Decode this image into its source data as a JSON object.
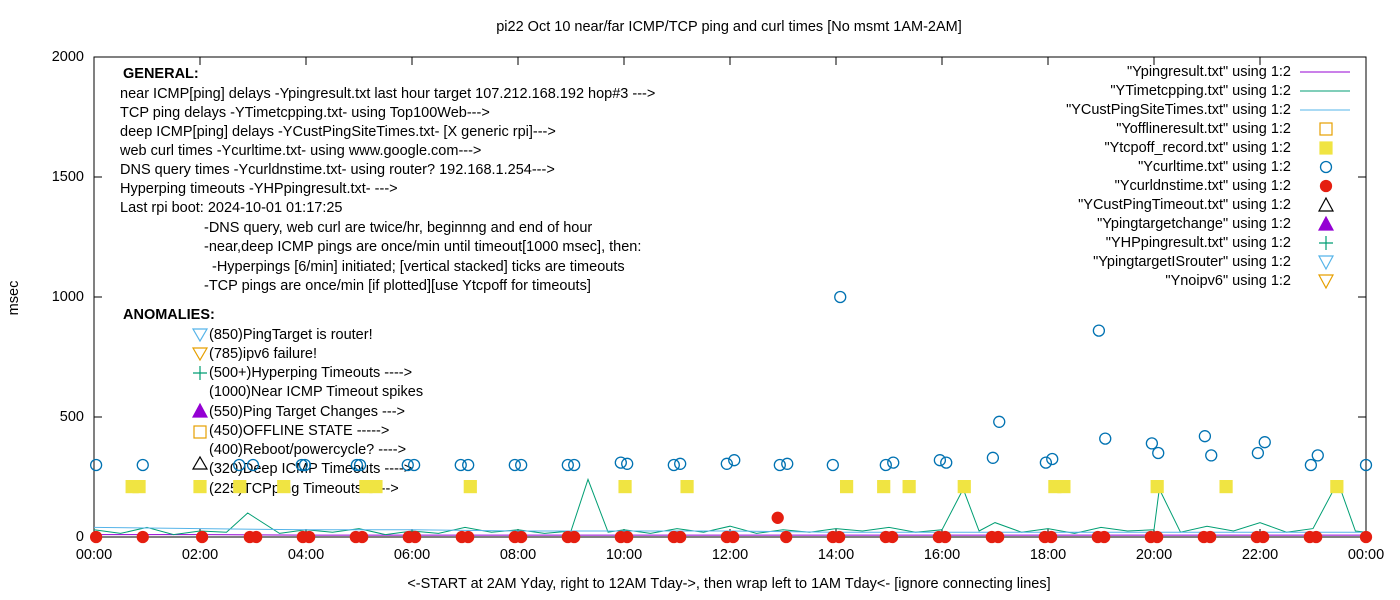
{
  "chart_data": {
    "type": "scatter",
    "title": "pi22 Oct 10  near/far ICMP/TCP ping and curl times [No msmt 1AM-2AM]",
    "y_label": "msec",
    "x_label": "<-START at 2AM Yday, right to 12AM Tday->, then wrap left to 1AM Tday<- [ignore connecting lines]",
    "xlim": [
      0,
      24
    ],
    "xticks": [
      {
        "value": 0,
        "label": "00:00"
      },
      {
        "value": 2,
        "label": "02:00"
      },
      {
        "value": 4,
        "label": "04:00"
      },
      {
        "value": 6,
        "label": "06:00"
      },
      {
        "value": 8,
        "label": "08:00"
      },
      {
        "value": 10,
        "label": "10:00"
      },
      {
        "value": 12,
        "label": "12:00"
      },
      {
        "value": 14,
        "label": "14:00"
      },
      {
        "value": 16,
        "label": "16:00"
      },
      {
        "value": 18,
        "label": "18:00"
      },
      {
        "value": 20,
        "label": "20:00"
      },
      {
        "value": 22,
        "label": "22:00"
      },
      {
        "value": 24,
        "label": "00:00"
      }
    ],
    "ylim": [
      0,
      2000
    ],
    "yticks": [
      0,
      500,
      1000,
      1500,
      2000
    ],
    "annotations": [
      "GENERAL:",
      "near ICMP[ping] delays -Ypingresult.txt last hour target 107.212.168.192 hop#3 --->",
      "TCP ping delays -YTimetcpping.txt- using Top100Web--->",
      "deep ICMP[ping] delays -YCustPingSiteTimes.txt- [X generic rpi]--->",
      "web curl times -Ycurltime.txt- using www.google.com--->",
      "DNS query times -Ycurldnstime.txt- using router? 192.168.1.254--->",
      "Hyperping timeouts -YHPpingresult.txt- --->",
      "Last rpi boot: 2024-10-01 01:17:25",
      "-DNS query, web curl are twice/hr, beginnng and end of hour",
      "-near,deep ICMP pings are once/min until timeout[1000 msec], then:",
      "-Hyperpings [6/min] initiated; [vertical stacked] ticks are timeouts",
      "-TCP pings are once/min [if plotted][use Ytcpoff for timeouts]",
      "ANOMALIES:",
      "(850)PingTarget is router!",
      "(785)ipv6 failure!",
      "(500+)Hyperping Timeouts ---->",
      "(1000)Near ICMP Timeout spikes",
      "(550)Ping Target Changes --->",
      "(450)OFFLINE STATE ----->",
      "(400)Reboot/powercycle? ---->",
      "(320)Deep ICMP Timeouts ---->",
      "(225)TCPping Timeouts ----->"
    ],
    "series": [
      {
        "name": "\"Ypingresult.txt\" using 1:2",
        "color": "#9400d3",
        "marker": "line",
        "x": [
          0,
          2,
          4,
          6,
          8,
          10,
          12,
          14,
          16,
          18,
          20,
          22,
          24
        ],
        "values": [
          10,
          10,
          8,
          8,
          8,
          8,
          8,
          8,
          8,
          8,
          8,
          8,
          8
        ]
      },
      {
        "name": "\"YTimetcpping.txt\" using 1:2",
        "color": "#009e73",
        "marker": "line",
        "x": [
          0,
          0.5,
          1,
          1.5,
          2,
          2.5,
          2.9,
          3.5,
          4,
          4.5,
          5,
          5.5,
          6,
          6.5,
          7,
          7.5,
          8,
          8.5,
          9,
          9.32,
          9.7,
          10,
          10.5,
          11,
          11.5,
          12,
          12.5,
          13,
          13.5,
          14,
          14.5,
          15,
          15.5,
          16,
          16.4,
          16.7,
          17,
          17.5,
          18,
          18.5,
          19,
          19.5,
          20,
          20.1,
          20.5,
          21,
          21.5,
          22,
          22.5,
          23,
          23.47,
          23.8,
          24
        ],
        "values": [
          30,
          15,
          40,
          10,
          25,
          20,
          100,
          15,
          30,
          20,
          35,
          10,
          25,
          15,
          40,
          20,
          30,
          15,
          25,
          240,
          20,
          30,
          15,
          35,
          20,
          45,
          15,
          30,
          20,
          35,
          25,
          40,
          20,
          30,
          200,
          25,
          60,
          20,
          35,
          15,
          40,
          25,
          30,
          200,
          20,
          45,
          25,
          60,
          20,
          35,
          230,
          25,
          20
        ]
      },
      {
        "name": "\"YCustPingSiteTimes.txt\" using 1:2",
        "color": "#56b4e9",
        "marker": "line",
        "x": [
          0,
          2,
          4,
          6,
          8,
          10,
          12,
          14,
          16,
          18,
          20,
          22,
          24
        ],
        "values": [
          40,
          35,
          30,
          30,
          25,
          25,
          25,
          20,
          20,
          20,
          20,
          20,
          20
        ]
      },
      {
        "name": "\"Yofflineresult.txt\" using 1:2",
        "color": "#e69f00",
        "marker": "open-square",
        "x": [],
        "values": []
      },
      {
        "name": "\"Ytcpoff_record.txt\" using 1:2",
        "color": "#f0e442",
        "marker": "filled-square",
        "x": [
          0.72,
          0.85,
          2.0,
          2.75,
          3.58,
          5.13,
          5.32,
          7.1,
          10.02,
          11.19,
          14.2,
          14.9,
          15.38,
          16.42,
          18.13,
          18.3,
          20.06,
          21.36,
          23.45
        ],
        "values": [
          210,
          210,
          210,
          210,
          210,
          210,
          210,
          210,
          210,
          210,
          210,
          210,
          210,
          210,
          210,
          210,
          210,
          210,
          210
        ]
      },
      {
        "name": "\"Ycurltime.txt\" using 1:2",
        "color": "#0072b2",
        "marker": "open-circle",
        "x": [
          0.04,
          0.92,
          2.74,
          3.0,
          3.92,
          3.98,
          4.96,
          5.02,
          5.92,
          6.04,
          6.92,
          7.06,
          7.94,
          8.06,
          8.94,
          9.06,
          9.94,
          10.06,
          10.94,
          11.06,
          11.94,
          12.08,
          12.94,
          13.08,
          13.94,
          14.08,
          14.94,
          15.08,
          15.96,
          16.08,
          16.96,
          17.08,
          17.96,
          18.08,
          18.96,
          19.08,
          19.96,
          20.08,
          20.96,
          21.08,
          21.96,
          22.09,
          22.96,
          23.09,
          24.0
        ],
        "values": [
          300,
          300,
          300,
          300,
          300,
          300,
          300,
          300,
          300,
          300,
          300,
          300,
          300,
          300,
          300,
          300,
          310,
          305,
          300,
          305,
          305,
          320,
          300,
          305,
          300,
          1000,
          300,
          310,
          320,
          310,
          330,
          480,
          310,
          325,
          860,
          410,
          390,
          350,
          420,
          340,
          350,
          395,
          300,
          340,
          300
        ]
      },
      {
        "name": "\"Ycurldnstime.txt\" using 1:2",
        "color": "#e51e10",
        "marker": "filled-circle",
        "x": [
          0.04,
          0.92,
          2.04,
          2.94,
          3.06,
          3.94,
          4.06,
          4.94,
          5.06,
          5.94,
          6.06,
          6.94,
          7.06,
          7.94,
          8.06,
          8.94,
          9.06,
          9.94,
          10.06,
          10.94,
          11.06,
          11.94,
          12.06,
          12.9,
          13.06,
          13.94,
          14.06,
          14.94,
          15.06,
          15.94,
          16.06,
          16.94,
          17.06,
          17.94,
          18.06,
          18.94,
          19.06,
          19.94,
          20.06,
          20.94,
          21.06,
          21.94,
          22.06,
          22.94,
          23.06,
          24.0
        ],
        "values": [
          0,
          0,
          0,
          0,
          0,
          0,
          0,
          0,
          0,
          0,
          0,
          0,
          0,
          0,
          0,
          0,
          0,
          0,
          0,
          0,
          0,
          0,
          0,
          80,
          0,
          0,
          0,
          0,
          0,
          0,
          0,
          0,
          0,
          0,
          0,
          0,
          0,
          0,
          0,
          0,
          0,
          0,
          0,
          0,
          0,
          0
        ]
      },
      {
        "name": "\"YCustPingTimeout.txt\" using 1:2",
        "color": "#000000",
        "marker": "open-triangle",
        "x": [],
        "values": []
      },
      {
        "name": "\"Ypingtargetchange\" using 1:2",
        "color": "#9400d3",
        "marker": "filled-triangle",
        "x": [],
        "values": []
      },
      {
        "name": "\"YHPpingresult.txt\" using 1:2",
        "color": "#009e73",
        "marker": "plus",
        "x": [],
        "values": []
      },
      {
        "name": "\"YpingtargetISrouter\" using 1:2",
        "color": "#56b4e9",
        "marker": "open-down-triangle",
        "x": [],
        "values": []
      },
      {
        "name": "\"Ynoipv6\" using 1:2",
        "color": "#e69f00",
        "marker": "open-down-triangle",
        "x": [],
        "values": []
      }
    ]
  }
}
